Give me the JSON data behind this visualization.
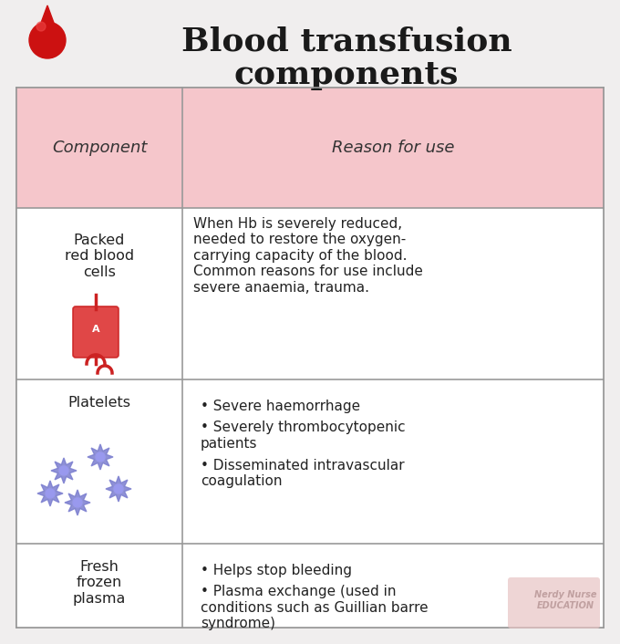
{
  "title_line1": "Blood transfusion",
  "title_line2": "components",
  "bg_color": "#f0eeee",
  "header_bg": "#f5c6cb",
  "table_border_color": "#999999",
  "col1_header": "Component",
  "col2_header": "Reason for use",
  "rows": [
    {
      "component": "Packed\nred blood\ncells",
      "reason": "When Hb is severely reduced,\nneeded to restore the oxygen-\ncarrying capacity of the blood.\nCommon reasons for use include\nsevere anaemia, trauma.",
      "bullet": false
    },
    {
      "component": "Platelets",
      "reason_bullets": [
        "Severe haemorrhage",
        "Severely thrombocytopenic\npatients",
        "Disseminated intravascular\ncoagulation"
      ],
      "bullet": true
    },
    {
      "component": "Fresh\nfrozen\nplasma",
      "reason_bullets": [
        "Helps stop bleeding",
        "Plasma exchange (used in\nconditions such as Guillian barre\nsyndrome)"
      ],
      "bullet": true
    }
  ],
  "watermark": "Nerdy Nurse\nEDUCATION",
  "watermark_color": "#c0a0a0",
  "title_fontsize": 26,
  "header_fontsize": 13,
  "cell_fontsize": 11.5,
  "title_color": "#1a1a1a",
  "header_text_color": "#333333",
  "cell_text_color": "#222222"
}
